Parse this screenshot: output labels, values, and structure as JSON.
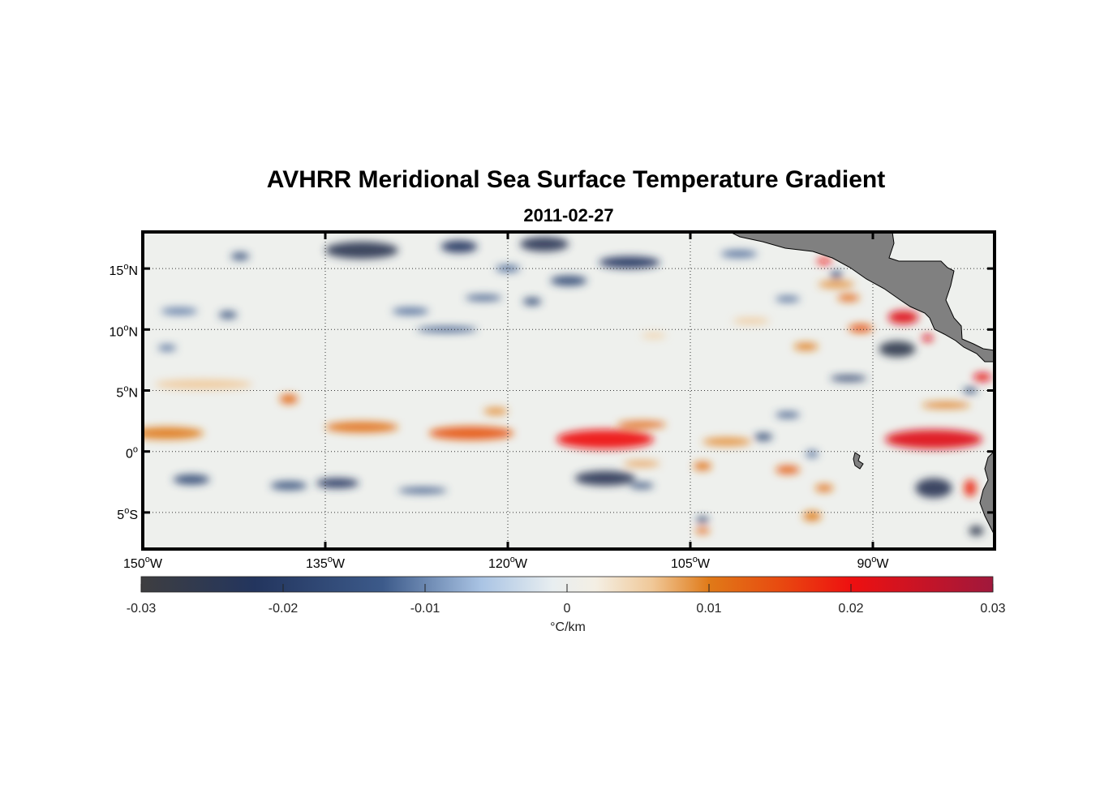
{
  "title": "AVHRR Meridional Sea Surface Temperature Gradient",
  "subtitle": "2011-02-27",
  "map": {
    "lon_range": [
      -150,
      -80
    ],
    "lat_range": [
      -8,
      18
    ],
    "lon_ticks": [
      {
        "value": -150,
        "num": "150",
        "hem": "W"
      },
      {
        "value": -135,
        "num": "135",
        "hem": "W"
      },
      {
        "value": -120,
        "num": "120",
        "hem": "W"
      },
      {
        "value": -105,
        "num": "105",
        "hem": "W"
      },
      {
        "value": -90,
        "num": "90",
        "hem": "W"
      }
    ],
    "lat_ticks": [
      {
        "value": 15,
        "num": "15",
        "hem": "N"
      },
      {
        "value": 10,
        "num": "10",
        "hem": "N"
      },
      {
        "value": 5,
        "num": "5",
        "hem": "N"
      },
      {
        "value": 0,
        "num": "0",
        "hem": ""
      },
      {
        "value": -5,
        "num": "5",
        "hem": "S"
      }
    ],
    "degree_symbol": "o",
    "grid": "dotted",
    "land_color": "#808080",
    "features": [
      {
        "kind": "pos",
        "lon": -148,
        "lat": 1.5,
        "w": 6,
        "h": 1.0,
        "val": 0.01
      },
      {
        "kind": "pos",
        "lon": -145,
        "lat": 5.5,
        "w": 8,
        "h": 0.8,
        "val": 0.006
      },
      {
        "kind": "pos",
        "lon": -138,
        "lat": 4.3,
        "w": 1.5,
        "h": 0.8,
        "val": 0.012
      },
      {
        "kind": "pos",
        "lon": -132,
        "lat": 2.0,
        "w": 6,
        "h": 0.9,
        "val": 0.011
      },
      {
        "kind": "pos",
        "lon": -123,
        "lat": 1.5,
        "w": 7,
        "h": 1.1,
        "val": 0.014
      },
      {
        "kind": "pos",
        "lon": -121,
        "lat": 3.3,
        "w": 2,
        "h": 0.6,
        "val": 0.009
      },
      {
        "kind": "pos",
        "lon": -112,
        "lat": 1.0,
        "w": 8,
        "h": 1.6,
        "val": 0.02
      },
      {
        "kind": "pos",
        "lon": -109,
        "lat": 2.2,
        "w": 4,
        "h": 0.6,
        "val": 0.012
      },
      {
        "kind": "pos",
        "lon": -102,
        "lat": 0.8,
        "w": 4,
        "h": 0.7,
        "val": 0.009
      },
      {
        "kind": "pos",
        "lon": -109,
        "lat": -1.0,
        "w": 3,
        "h": 0.5,
        "val": 0.008
      },
      {
        "kind": "pos",
        "lon": -104,
        "lat": -1.2,
        "w": 1.5,
        "h": 0.7,
        "val": 0.011
      },
      {
        "kind": "pos",
        "lon": -97,
        "lat": -1.5,
        "w": 2,
        "h": 0.7,
        "val": 0.013
      },
      {
        "kind": "pos",
        "lon": -94,
        "lat": -3.0,
        "w": 1.5,
        "h": 0.6,
        "val": 0.011
      },
      {
        "kind": "pos",
        "lon": -95,
        "lat": -5.3,
        "w": 1.5,
        "h": 0.8,
        "val": 0.01
      },
      {
        "kind": "pos",
        "lon": -104,
        "lat": -6.5,
        "w": 1.2,
        "h": 0.5,
        "val": 0.012
      },
      {
        "kind": "pos",
        "lon": -85,
        "lat": 1.0,
        "w": 8,
        "h": 1.6,
        "val": 0.022
      },
      {
        "kind": "pos",
        "lon": -84,
        "lat": 3.8,
        "w": 4,
        "h": 0.5,
        "val": 0.01
      },
      {
        "kind": "pos",
        "lon": -81,
        "lat": 6.1,
        "w": 1.5,
        "h": 0.7,
        "val": 0.021
      },
      {
        "kind": "pos",
        "lon": -82,
        "lat": -3.0,
        "w": 1.0,
        "h": 1.4,
        "val": 0.018
      },
      {
        "kind": "pos",
        "lon": -87.5,
        "lat": 11.0,
        "w": 2.5,
        "h": 1.1,
        "val": 0.022
      },
      {
        "kind": "pos",
        "lon": -91,
        "lat": 10.1,
        "w": 2,
        "h": 0.7,
        "val": 0.014
      },
      {
        "kind": "pos",
        "lon": -94,
        "lat": 15.6,
        "w": 1.2,
        "h": 0.5,
        "val": 0.02
      },
      {
        "kind": "pos",
        "lon": -93,
        "lat": 13.7,
        "w": 3,
        "h": 0.6,
        "val": 0.009
      },
      {
        "kind": "pos",
        "lon": -92,
        "lat": 12.6,
        "w": 1.8,
        "h": 0.6,
        "val": 0.012
      },
      {
        "kind": "pos",
        "lon": -95.5,
        "lat": 8.6,
        "w": 2,
        "h": 0.6,
        "val": 0.01
      },
      {
        "kind": "pos",
        "lon": -100,
        "lat": 10.7,
        "w": 3,
        "h": 0.5,
        "val": 0.006
      },
      {
        "kind": "pos",
        "lon": -108,
        "lat": 9.5,
        "w": 2,
        "h": 0.5,
        "val": 0.005
      },
      {
        "kind": "pos",
        "lon": -85.5,
        "lat": 9.3,
        "w": 0.9,
        "h": 0.6,
        "val": 0.022
      },
      {
        "kind": "neg",
        "lon": -132,
        "lat": 16.5,
        "w": 6,
        "h": 1.4,
        "val": -0.025
      },
      {
        "kind": "neg",
        "lon": -124,
        "lat": 16.8,
        "w": 3,
        "h": 1.0,
        "val": -0.022
      },
      {
        "kind": "neg",
        "lon": -117,
        "lat": 17.0,
        "w": 4,
        "h": 1.2,
        "val": -0.024
      },
      {
        "kind": "neg",
        "lon": -110,
        "lat": 15.5,
        "w": 5,
        "h": 1.0,
        "val": -0.022
      },
      {
        "kind": "neg",
        "lon": -115,
        "lat": 14.0,
        "w": 3,
        "h": 0.8,
        "val": -0.018
      },
      {
        "kind": "neg",
        "lon": -120,
        "lat": 15.0,
        "w": 2,
        "h": 0.6,
        "val": -0.012
      },
      {
        "kind": "neg",
        "lon": -142,
        "lat": 16.0,
        "w": 1.5,
        "h": 0.6,
        "val": -0.017
      },
      {
        "kind": "neg",
        "lon": -128,
        "lat": 11.5,
        "w": 3,
        "h": 0.6,
        "val": -0.012
      },
      {
        "kind": "neg",
        "lon": -122,
        "lat": 12.6,
        "w": 3,
        "h": 0.5,
        "val": -0.014
      },
      {
        "kind": "neg",
        "lon": -118,
        "lat": 12.3,
        "w": 1.5,
        "h": 0.6,
        "val": -0.018
      },
      {
        "kind": "neg",
        "lon": -125,
        "lat": 10.0,
        "w": 5,
        "h": 0.5,
        "val": -0.013
      },
      {
        "kind": "neg",
        "lon": -147,
        "lat": 11.5,
        "w": 3,
        "h": 0.6,
        "val": -0.011
      },
      {
        "kind": "neg",
        "lon": -143,
        "lat": 11.2,
        "w": 1.5,
        "h": 0.6,
        "val": -0.016
      },
      {
        "kind": "neg",
        "lon": -148,
        "lat": 8.5,
        "w": 1.5,
        "h": 0.5,
        "val": -0.012
      },
      {
        "kind": "neg",
        "lon": -146,
        "lat": -2.3,
        "w": 3,
        "h": 0.8,
        "val": -0.018
      },
      {
        "kind": "neg",
        "lon": -138,
        "lat": -2.8,
        "w": 3,
        "h": 0.7,
        "val": -0.016
      },
      {
        "kind": "neg",
        "lon": -134,
        "lat": -2.6,
        "w": 3.5,
        "h": 0.8,
        "val": -0.022
      },
      {
        "kind": "neg",
        "lon": -127,
        "lat": -3.2,
        "w": 4,
        "h": 0.5,
        "val": -0.014
      },
      {
        "kind": "neg",
        "lon": -112,
        "lat": -2.2,
        "w": 5,
        "h": 1.2,
        "val": -0.024
      },
      {
        "kind": "neg",
        "lon": -109,
        "lat": -2.8,
        "w": 2,
        "h": 0.5,
        "val": -0.016
      },
      {
        "kind": "neg",
        "lon": -92,
        "lat": 6.0,
        "w": 3,
        "h": 0.5,
        "val": -0.02
      },
      {
        "kind": "neg",
        "lon": -97,
        "lat": 3.0,
        "w": 2,
        "h": 0.5,
        "val": -0.014
      },
      {
        "kind": "neg",
        "lon": -99,
        "lat": 1.2,
        "w": 1.5,
        "h": 0.6,
        "val": -0.018
      },
      {
        "kind": "neg",
        "lon": -95,
        "lat": -0.2,
        "w": 1.0,
        "h": 0.6,
        "val": -0.012
      },
      {
        "kind": "neg",
        "lon": -88,
        "lat": 8.4,
        "w": 3,
        "h": 1.3,
        "val": -0.026
      },
      {
        "kind": "neg",
        "lon": -85,
        "lat": -3.0,
        "w": 3,
        "h": 1.6,
        "val": -0.024
      },
      {
        "kind": "neg",
        "lon": -81.5,
        "lat": -6.5,
        "w": 1.2,
        "h": 0.8,
        "val": -0.026
      },
      {
        "kind": "neg",
        "lon": -104,
        "lat": -5.6,
        "w": 1.0,
        "h": 0.5,
        "val": -0.022
      },
      {
        "kind": "neg",
        "lon": -97,
        "lat": 12.5,
        "w": 2,
        "h": 0.5,
        "val": -0.012
      },
      {
        "kind": "neg",
        "lon": -101,
        "lat": 16.2,
        "w": 3,
        "h": 0.6,
        "val": -0.012
      },
      {
        "kind": "neg",
        "lon": -93,
        "lat": 14.5,
        "w": 1.0,
        "h": 0.6,
        "val": -0.018
      },
      {
        "kind": "neg",
        "lon": -82,
        "lat": 5.0,
        "w": 1.2,
        "h": 0.5,
        "val": -0.018
      }
    ]
  },
  "colorbar": {
    "min": -0.03,
    "max": 0.03,
    "tick_labels": [
      "-0.03",
      "-0.02",
      "-0.01",
      "0",
      "0.01",
      "0.02",
      "0.03"
    ],
    "tick_values": [
      -0.03,
      -0.02,
      -0.01,
      0,
      0.01,
      0.02,
      0.03
    ],
    "unit": "°C/km",
    "stops": [
      {
        "v": -0.03,
        "color": "#3e3e40"
      },
      {
        "v": -0.022,
        "color": "#23355e"
      },
      {
        "v": -0.013,
        "color": "#3c5a8a"
      },
      {
        "v": -0.006,
        "color": "#aac4e4"
      },
      {
        "v": -0.001,
        "color": "#e8eef0"
      },
      {
        "v": 0.002,
        "color": "#f4efe4"
      },
      {
        "v": 0.006,
        "color": "#f0c898"
      },
      {
        "v": 0.01,
        "color": "#e07a18"
      },
      {
        "v": 0.015,
        "color": "#e84a10"
      },
      {
        "v": 0.02,
        "color": "#ee1010"
      },
      {
        "v": 0.03,
        "color": "#a0183c"
      }
    ]
  }
}
